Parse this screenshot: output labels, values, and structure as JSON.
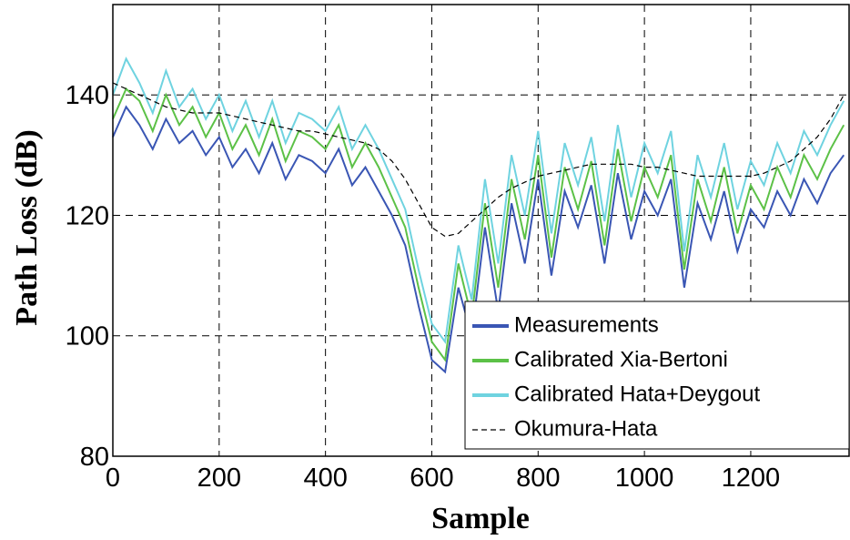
{
  "chart_data": {
    "type": "line",
    "xlabel": "Sample",
    "ylabel": "Path Loss (dB)",
    "xlim": [
      0,
      1385
    ],
    "ylim": [
      80,
      155
    ],
    "xticks": [
      0,
      200,
      400,
      600,
      800,
      1000,
      1200
    ],
    "yticks": [
      80,
      100,
      120,
      140
    ],
    "grid": true,
    "legend": "lower right",
    "x": [
      0,
      25,
      50,
      75,
      100,
      125,
      150,
      175,
      200,
      225,
      250,
      275,
      300,
      325,
      350,
      375,
      400,
      425,
      450,
      475,
      500,
      525,
      550,
      575,
      600,
      625,
      650,
      675,
      700,
      725,
      750,
      775,
      800,
      825,
      850,
      875,
      900,
      925,
      950,
      975,
      1000,
      1025,
      1050,
      1075,
      1100,
      1125,
      1150,
      1175,
      1200,
      1225,
      1250,
      1275,
      1300,
      1325,
      1350,
      1375
    ],
    "series": [
      {
        "name": "Measurements",
        "color": "#3a56b4",
        "linestyle": "solid",
        "values": [
          133,
          138,
          135,
          131,
          136,
          132,
          134,
          130,
          133,
          128,
          131,
          127,
          132,
          126,
          130,
          129,
          127,
          131,
          125,
          128,
          124,
          120,
          115,
          105,
          96,
          94,
          108,
          100,
          118,
          104,
          122,
          112,
          126,
          110,
          124,
          118,
          125,
          112,
          127,
          116,
          124,
          120,
          126,
          108,
          122,
          116,
          124,
          114,
          121,
          118,
          124,
          120,
          126,
          122,
          127,
          130
        ]
      },
      {
        "name": "Calibrated Xia-Bertoni",
        "color": "#5cc147",
        "linestyle": "solid",
        "values": [
          136,
          141,
          139,
          134,
          140,
          135,
          138,
          133,
          137,
          131,
          135,
          130,
          136,
          129,
          134,
          133,
          131,
          135,
          128,
          132,
          128,
          123,
          118,
          108,
          99,
          96,
          112,
          103,
          122,
          108,
          126,
          116,
          130,
          113,
          128,
          121,
          129,
          115,
          131,
          119,
          128,
          123,
          130,
          111,
          126,
          119,
          128,
          117,
          125,
          121,
          128,
          123,
          130,
          126,
          131,
          135
        ]
      },
      {
        "name": "Calibrated Hata+Deygout",
        "color": "#6fd3e0",
        "linestyle": "solid",
        "values": [
          140,
          146,
          142,
          137,
          144,
          138,
          141,
          136,
          140,
          134,
          139,
          133,
          139,
          132,
          137,
          136,
          134,
          138,
          131,
          135,
          131,
          126,
          121,
          111,
          102,
          99,
          115,
          106,
          126,
          112,
          130,
          120,
          134,
          117,
          132,
          125,
          133,
          119,
          135,
          123,
          132,
          127,
          134,
          114,
          130,
          123,
          132,
          121,
          129,
          125,
          132,
          127,
          134,
          130,
          135,
          139
        ]
      },
      {
        "name": "Okumura-Hata",
        "color": "#000000",
        "linestyle": "dashed",
        "values": [
          142,
          141,
          140,
          139,
          138,
          137.5,
          137,
          137,
          137,
          136.5,
          136,
          135.5,
          135,
          134.5,
          134,
          134,
          133.5,
          133,
          132.5,
          132,
          131,
          129,
          126,
          122,
          118,
          116.5,
          117,
          119,
          121,
          123,
          124.5,
          125.5,
          126.5,
          127,
          127.5,
          128,
          128.5,
          128.5,
          128.5,
          128.5,
          128,
          128,
          127.5,
          127,
          126.5,
          126.5,
          126.5,
          126.5,
          126.5,
          127,
          128,
          129,
          131,
          133,
          136,
          140
        ]
      }
    ]
  }
}
